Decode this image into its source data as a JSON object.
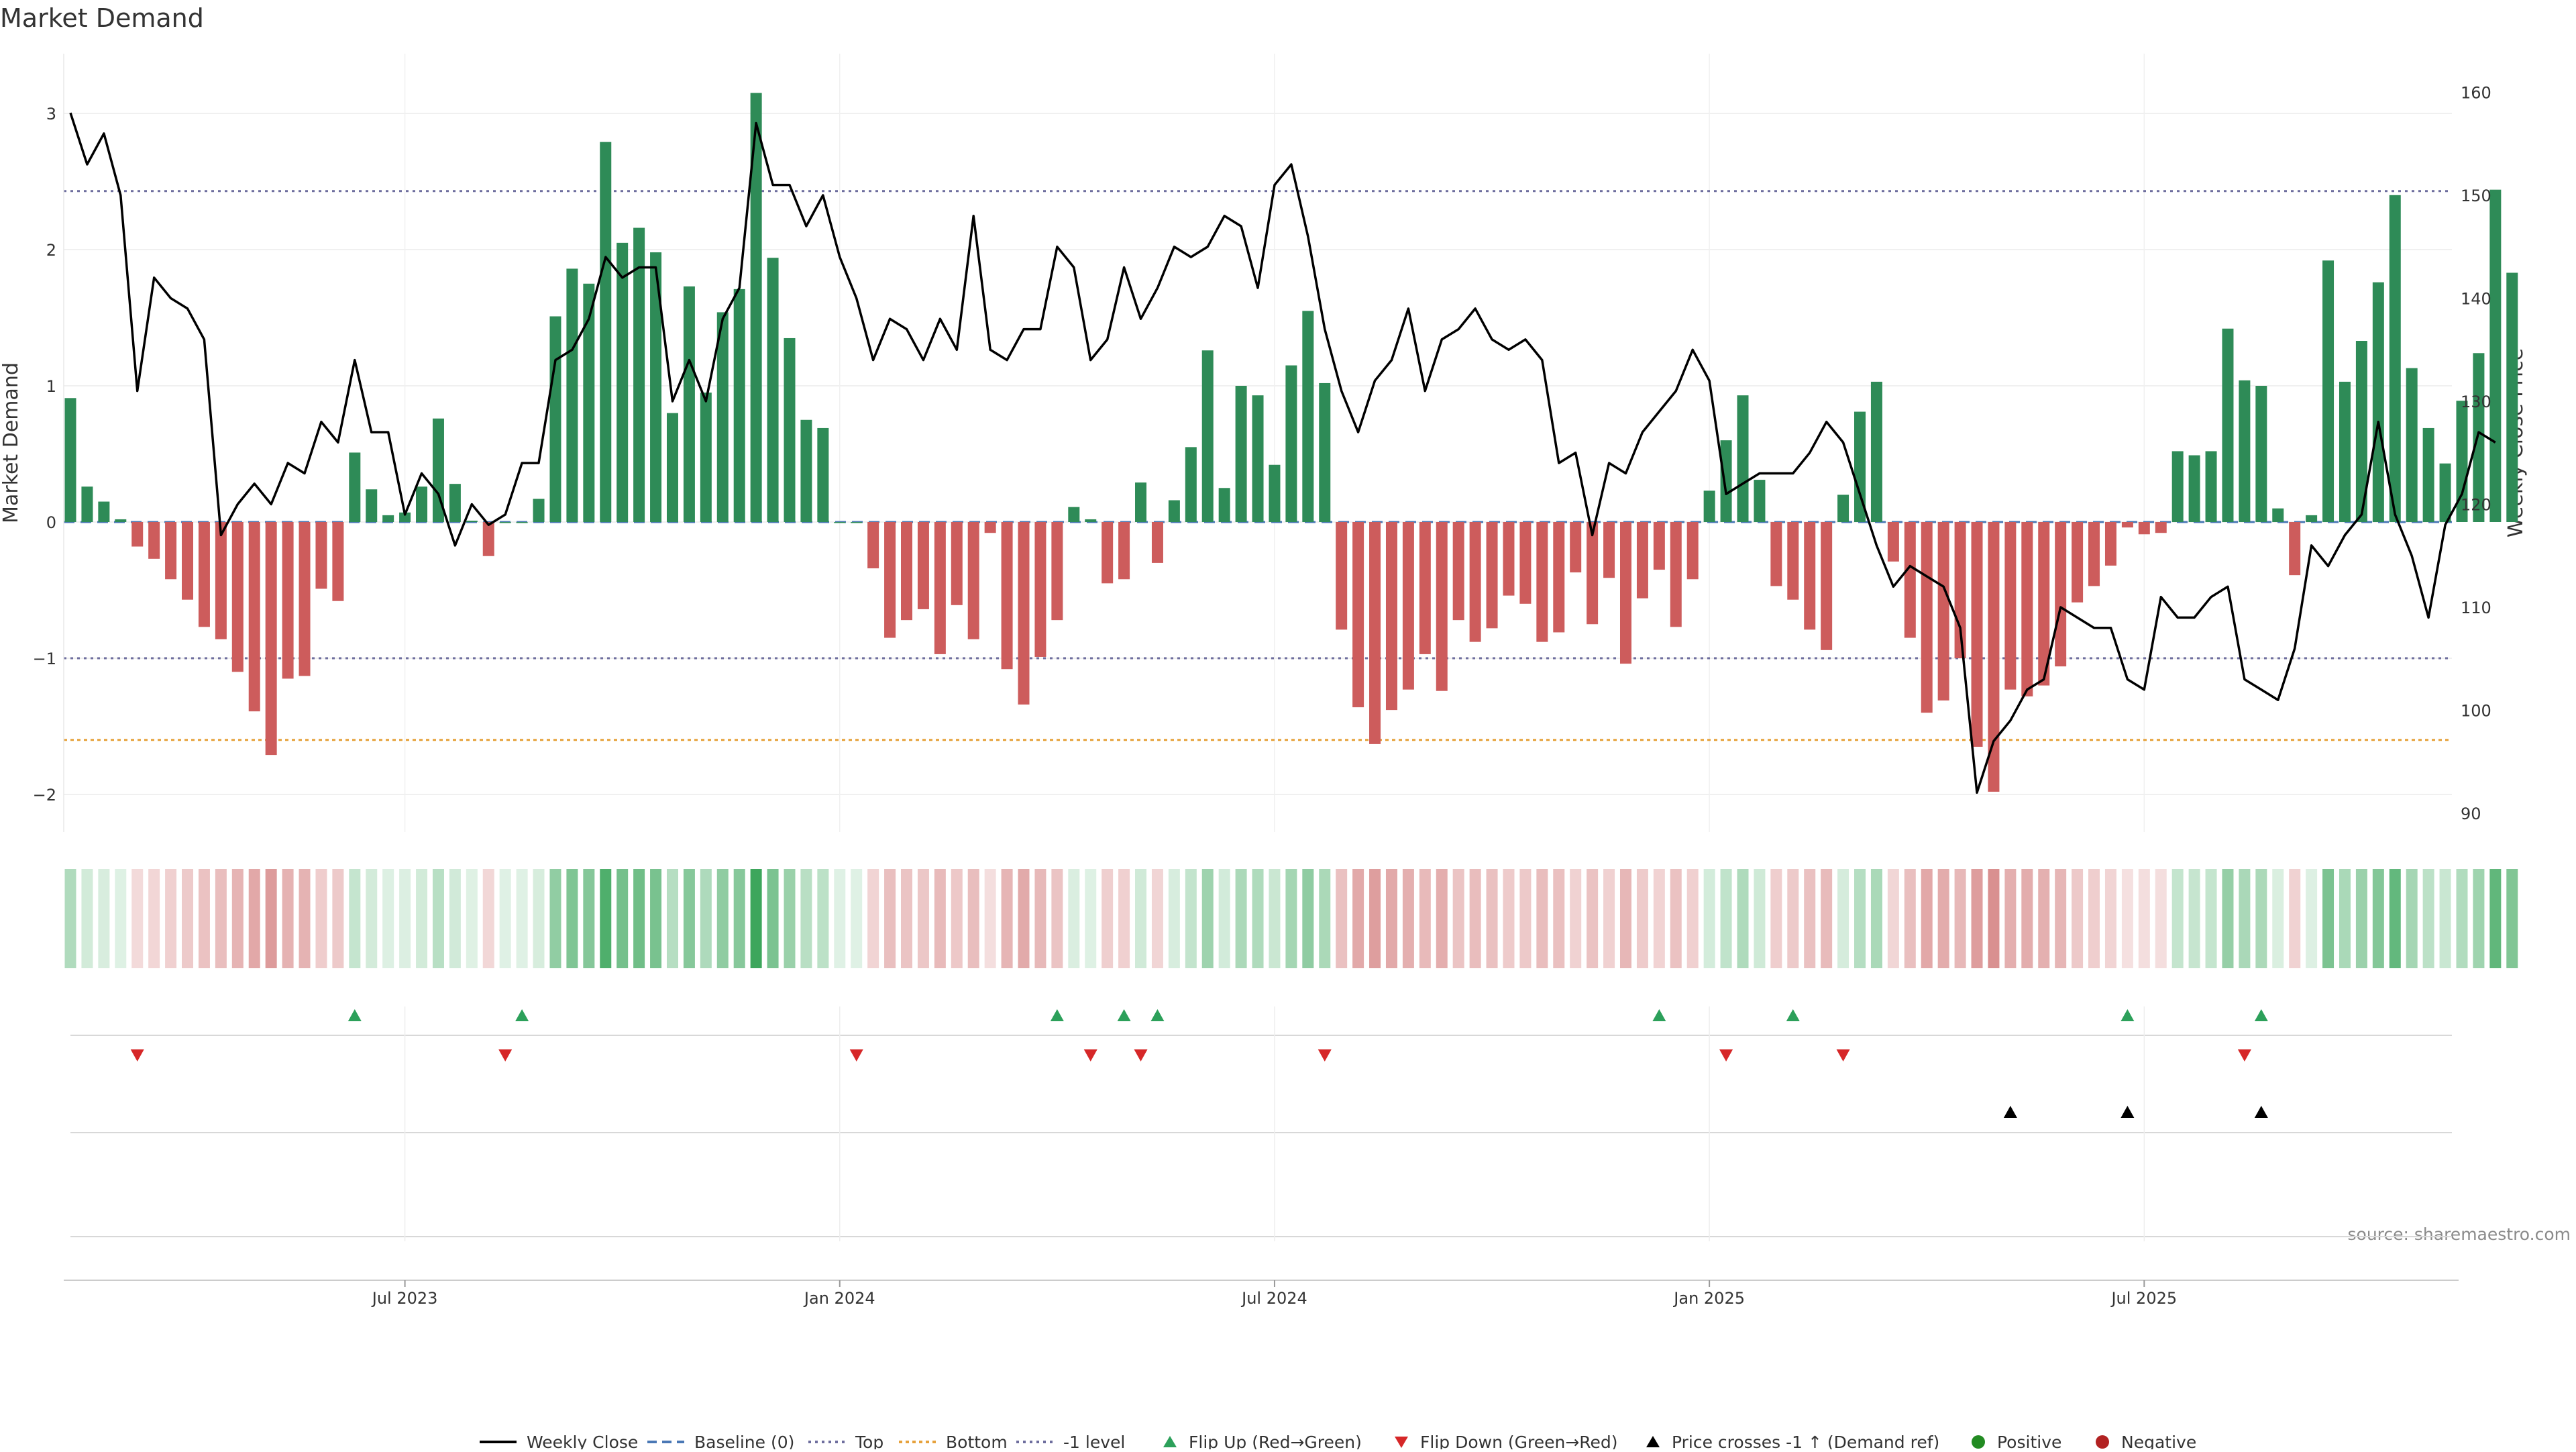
{
  "chart_data": {
    "type": "bar",
    "title": "Market Demand",
    "ylabel_left": "Market Demand",
    "ylabel_right": "Weekly Close Price",
    "source": "source: sharemaestro.com",
    "ylim_left": [
      -2.2,
      3.3
    ],
    "ylim_right": [
      88,
      162
    ],
    "left_ticks": [
      3,
      2,
      1,
      0,
      -1,
      -2
    ],
    "left_tick_labels": [
      "3",
      "2",
      "1",
      "0",
      "−1",
      "−2"
    ],
    "right_ticks": [
      160,
      150,
      140,
      130,
      120,
      110,
      100,
      90
    ],
    "right_tick_labels": [
      "160",
      "150",
      "140",
      "130",
      "120",
      "110",
      "100",
      "90"
    ],
    "reference_lines": {
      "top": 2.43,
      "bottom": -1.6,
      "minus_one": -1.0,
      "baseline": 0
    },
    "x_tick_labels": [
      {
        "index": 20,
        "label": "Jul 2023"
      },
      {
        "index": 46,
        "label": "Jan 2024"
      },
      {
        "index": 72,
        "label": "Jul 2024"
      },
      {
        "index": 98,
        "label": "Jan 2025"
      },
      {
        "index": 124,
        "label": "Jul 2025"
      }
    ],
    "demand": [
      0.91,
      0.26,
      0.15,
      0.02,
      -0.18,
      -0.27,
      -0.42,
      -0.57,
      -0.77,
      -0.86,
      -1.1,
      -1.39,
      -1.71,
      -1.15,
      -1.13,
      -0.49,
      -0.58,
      0.51,
      0.24,
      0.05,
      0.07,
      0.26,
      0.76,
      0.28,
      0.01,
      -0.25,
      0.0,
      0.0,
      0.17,
      1.51,
      1.86,
      1.75,
      2.79,
      2.05,
      2.16,
      1.98,
      0.8,
      1.73,
      0.95,
      1.54,
      1.71,
      3.15,
      1.94,
      1.35,
      0.75,
      0.69,
      0.0,
      0.0,
      -0.34,
      -0.85,
      -0.72,
      -0.64,
      -0.97,
      -0.61,
      -0.86,
      -0.08,
      -1.08,
      -1.34,
      -0.99,
      -0.72,
      0.11,
      0.02,
      -0.45,
      -0.42,
      0.29,
      -0.3,
      0.16,
      0.55,
      1.26,
      0.25,
      1.0,
      0.93,
      0.42,
      1.15,
      1.55,
      1.02,
      -0.79,
      -1.36,
      -1.63,
      -1.38,
      -1.23,
      -0.97,
      -1.24,
      -0.72,
      -0.88,
      -0.78,
      -0.54,
      -0.6,
      -0.88,
      -0.81,
      -0.37,
      -0.75,
      -0.41,
      -1.04,
      -0.56,
      -0.35,
      -0.77,
      -0.42,
      0.23,
      0.6,
      0.93,
      0.31,
      -0.47,
      -0.57,
      -0.79,
      -0.94,
      0.2,
      0.81,
      1.03,
      -0.29,
      -0.85,
      -1.4,
      -1.31,
      -1.0,
      -1.65,
      -1.98,
      -1.23,
      -1.28,
      -1.2,
      -1.06,
      -0.59,
      -0.47,
      -0.32,
      -0.04,
      -0.09,
      -0.08,
      0.52,
      0.49,
      0.52,
      1.42,
      1.04,
      1.0,
      0.1,
      -0.39,
      0.05,
      1.92,
      1.03,
      1.33,
      1.76,
      2.4,
      1.13,
      0.69,
      0.43,
      0.89,
      1.24,
      2.44,
      1.83
    ],
    "weekly_close": [
      158,
      153,
      156,
      150,
      131,
      142,
      140,
      139,
      136,
      117,
      120,
      122,
      120,
      124,
      123,
      128,
      126,
      134,
      127,
      127,
      119,
      123,
      121,
      116,
      120,
      118,
      119,
      124,
      124,
      134,
      135,
      138,
      144,
      142,
      143,
      143,
      130,
      134,
      130,
      138,
      141,
      157,
      151,
      151,
      147,
      150,
      144,
      140,
      134,
      138,
      137,
      134,
      138,
      135,
      148,
      135,
      134,
      137,
      137,
      145,
      143,
      134,
      136,
      143,
      138,
      141,
      145,
      144,
      145,
      148,
      147,
      141,
      151,
      153,
      146,
      137,
      131,
      127,
      132,
      134,
      139,
      131,
      136,
      137,
      139,
      136,
      135,
      136,
      134,
      124,
      125,
      117,
      124,
      123,
      127,
      129,
      131,
      135,
      132,
      121,
      122,
      123,
      123,
      123,
      125,
      128,
      126,
      121,
      116,
      112,
      114,
      113,
      112,
      108,
      92,
      97,
      99,
      102,
      103,
      110,
      109,
      108,
      108,
      103,
      102,
      111,
      109,
      109,
      111,
      112,
      103,
      102,
      101,
      106,
      116,
      114,
      117,
      119,
      128,
      119,
      115,
      109,
      118,
      121,
      127,
      126
    ],
    "flip_up_indices": [
      17,
      27,
      59,
      63,
      65,
      95,
      103,
      123,
      131
    ],
    "flip_down_indices": [
      4,
      26,
      47,
      61,
      64,
      75,
      99,
      106,
      130
    ],
    "price_cross_indices": [
      116,
      123,
      131
    ],
    "legend": [
      "Weekly Close",
      "Baseline (0)",
      "Top",
      "Bottom",
      "-1 level",
      "Flip Up (Red→Green)",
      "Flip Down (Green→Red)",
      "Price crosses -1 ↑ (Demand ref)",
      "Positive",
      "Negative"
    ],
    "colors": {
      "positive_bar": "#2e8b57",
      "negative_bar": "#cd5c5c",
      "price_line": "#000000",
      "baseline": "#4a78b5",
      "top_line": "#6e6e9e",
      "bottom_line": "#e6a23c",
      "minus_one_line": "#6e6e9e",
      "flip_up": "#2ca05a",
      "flip_down": "#d62728",
      "price_cross": "#000000",
      "positive_dot": "#228b22",
      "negative_dot": "#b22222"
    }
  }
}
